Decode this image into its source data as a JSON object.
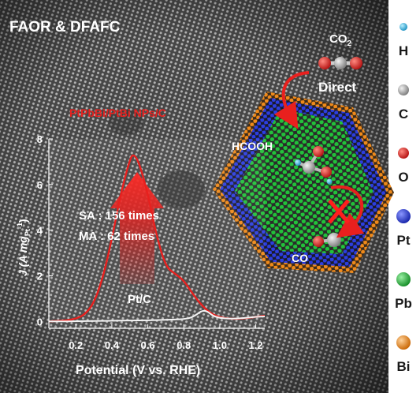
{
  "header": {
    "title": "FAOR & DFAFC"
  },
  "product": {
    "co2_label": "CO",
    "co2_sub": "2",
    "direct_label": "Direct"
  },
  "labels": {
    "hcooh": "HCOOH",
    "co": "CO",
    "catalyst": "PtPbBi/PtBi NPs/C",
    "pt_c": "Pt/C"
  },
  "stats": {
    "sa": "SA : 156 times",
    "ma": "MA : 62 times"
  },
  "legend": {
    "items": [
      {
        "label": "H",
        "color": "#29b6e0"
      },
      {
        "label": "C",
        "color": "#a9a9a9"
      },
      {
        "label": "O",
        "color": "#e0282e"
      },
      {
        "label": "Pt",
        "color": "#2c3ee0"
      },
      {
        "label": "Pb",
        "color": "#22c23a"
      },
      {
        "label": "Bi",
        "color": "#f08a1a"
      }
    ]
  },
  "chart_data": {
    "type": "line",
    "xlabel": "Potential (V vs. RHE)",
    "ylabel": "J (A mg",
    "ylabel_sub": "Pt",
    "ylabel_sup": "-1",
    "ylabel_end": ")",
    "xlim": [
      0.05,
      1.25
    ],
    "ylim": [
      -0.3,
      8
    ],
    "xticks": [
      "0.2",
      "0.4",
      "0.6",
      "0.8",
      "1.0",
      "1.2"
    ],
    "xtick_values": [
      0.2,
      0.4,
      0.6,
      0.8,
      1.0,
      1.2
    ],
    "yticks": [
      "0",
      "2",
      "4",
      "6",
      "8"
    ],
    "ytick_values": [
      0,
      2,
      4,
      6,
      8
    ],
    "series": [
      {
        "name": "PtPbBi/PtBi NPs/C",
        "color": "#e8201e",
        "x": [
          0.05,
          0.1,
          0.15,
          0.2,
          0.25,
          0.3,
          0.35,
          0.4,
          0.45,
          0.5,
          0.52,
          0.55,
          0.6,
          0.65,
          0.7,
          0.75,
          0.8,
          0.85,
          0.9,
          0.95,
          1.0,
          1.05,
          1.1,
          1.15,
          1.2,
          1.25
        ],
        "y": [
          0.0,
          0.02,
          0.05,
          0.12,
          0.3,
          0.8,
          1.9,
          3.6,
          5.6,
          7.1,
          7.35,
          7.0,
          5.6,
          3.7,
          2.4,
          2.1,
          1.8,
          1.2,
          0.7,
          0.35,
          0.18,
          0.12,
          0.12,
          0.15,
          0.2,
          0.25
        ]
      },
      {
        "name": "Pt/C",
        "color": "#f4f4f4",
        "x": [
          0.05,
          0.1,
          0.2,
          0.3,
          0.4,
          0.5,
          0.6,
          0.7,
          0.8,
          0.85,
          0.9,
          0.93,
          0.96,
          1.0,
          1.05,
          1.1,
          1.15,
          1.2,
          1.25
        ],
        "y": [
          0.0,
          0.0,
          0.01,
          0.02,
          0.03,
          0.04,
          0.05,
          0.07,
          0.1,
          0.18,
          0.48,
          0.45,
          0.25,
          0.15,
          0.12,
          0.13,
          0.16,
          0.2,
          0.22
        ]
      }
    ]
  }
}
